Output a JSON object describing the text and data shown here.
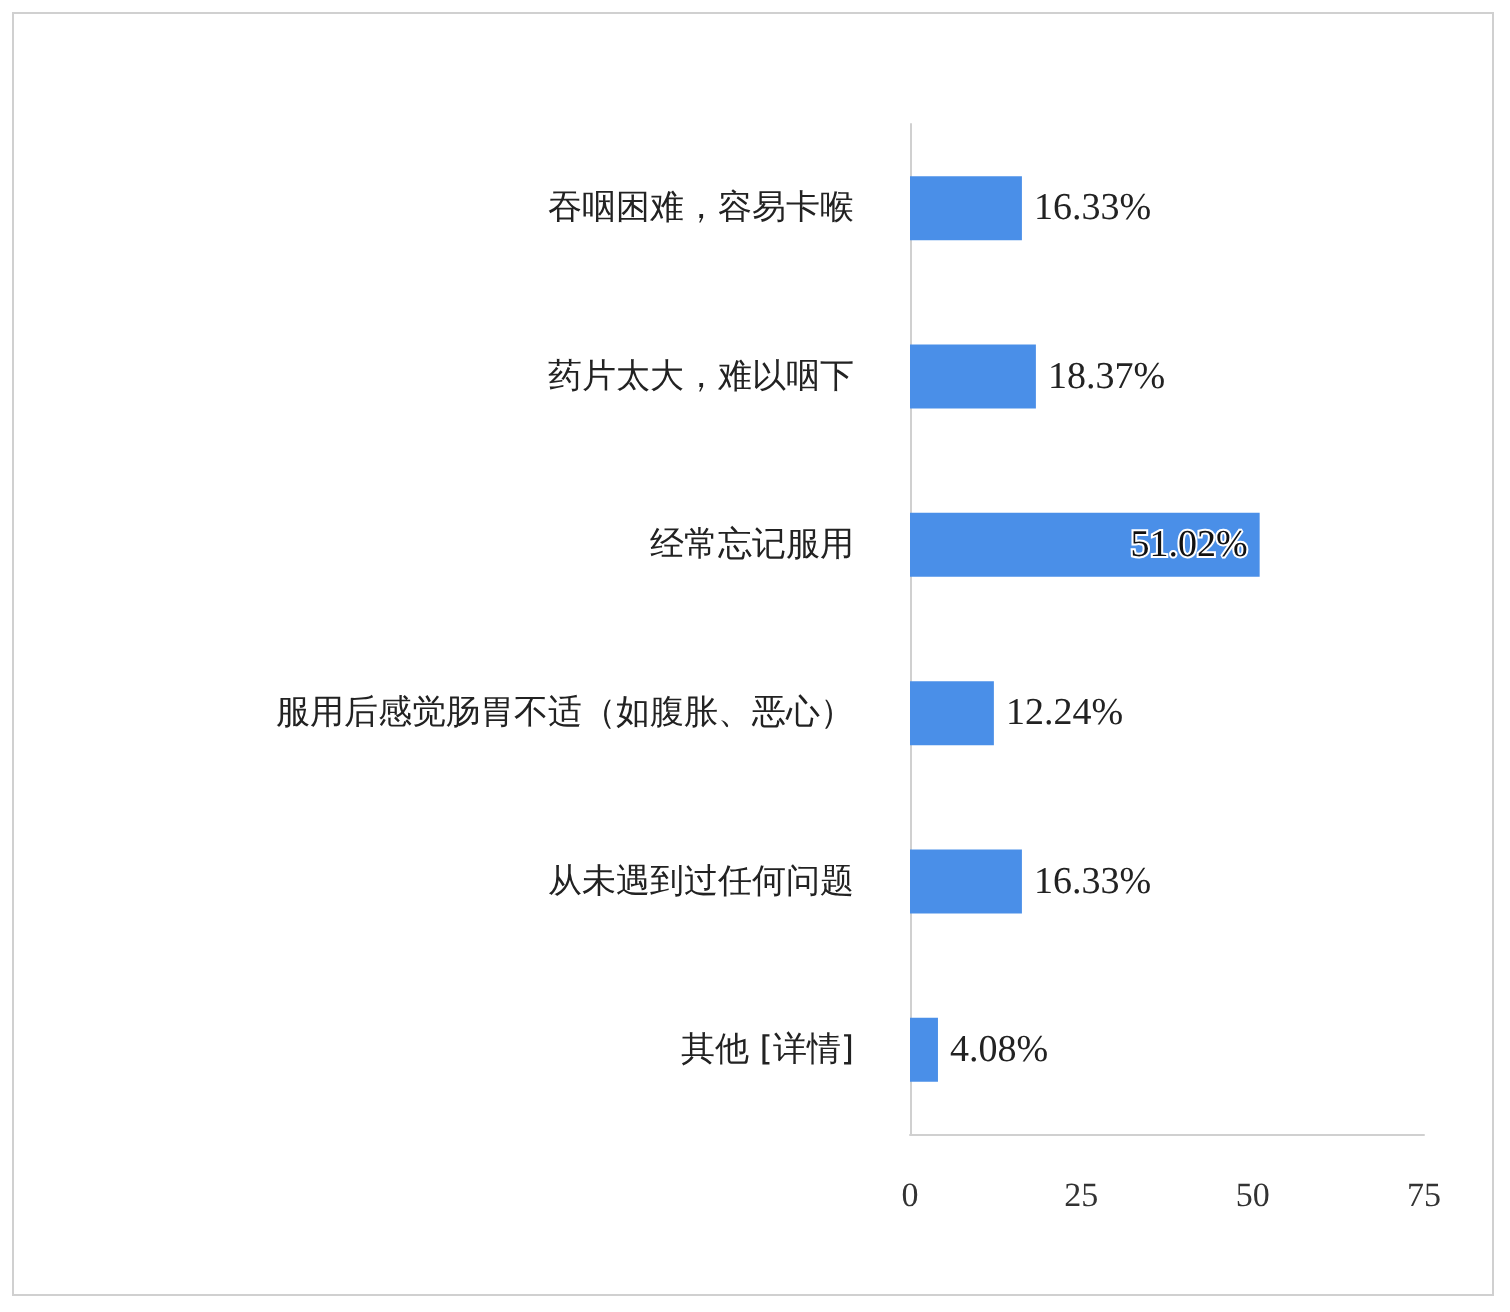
{
  "chart_data": {
    "type": "bar",
    "orientation": "horizontal",
    "categories": [
      "吞咽困难，容易卡喉",
      "药片太大，难以咽下",
      "经常忘记服用",
      "服用后感觉肠胃不适（如腹胀、恶心）",
      "从未遇到过任何问题",
      "其他 [详情]"
    ],
    "values": [
      16.33,
      18.37,
      51.02,
      12.24,
      16.33,
      4.08
    ],
    "value_labels": [
      "16.33%",
      "18.37%",
      "51.02%",
      "12.24%",
      "16.33%",
      "4.08%"
    ],
    "color": "#4a8fe8",
    "xlim": [
      0,
      75
    ],
    "xticks": [
      0,
      25,
      50,
      75
    ],
    "grid": false
  }
}
